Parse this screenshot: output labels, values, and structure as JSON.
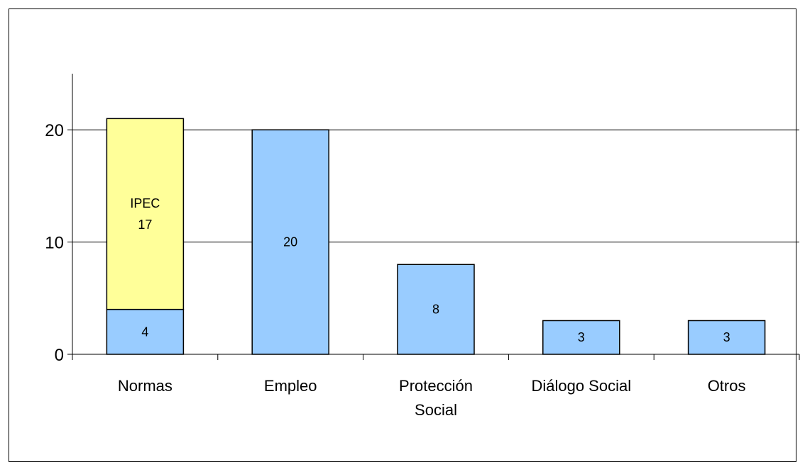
{
  "chart_data": {
    "type": "bar",
    "stacked": true,
    "categories": [
      [
        "Normas"
      ],
      [
        "Empleo"
      ],
      [
        "Protección",
        "Social"
      ],
      [
        "Diálogo Social"
      ],
      [
        "Otros"
      ]
    ],
    "series": [
      {
        "values": [
          4,
          20,
          8,
          3,
          3
        ],
        "color": "#99ccff",
        "labels": [
          "4",
          "20",
          "8",
          "3",
          "3"
        ]
      },
      {
        "values": [
          17,
          0,
          0,
          0,
          0
        ],
        "color": "#ffff99",
        "labels": [
          "IPEC\n17",
          "",
          "",
          "",
          ""
        ]
      }
    ],
    "ylim": [
      0,
      25
    ],
    "yticks": [
      0,
      10,
      20
    ],
    "grid": true,
    "legend": "none",
    "title": "",
    "xlabel": "",
    "ylabel": ""
  }
}
